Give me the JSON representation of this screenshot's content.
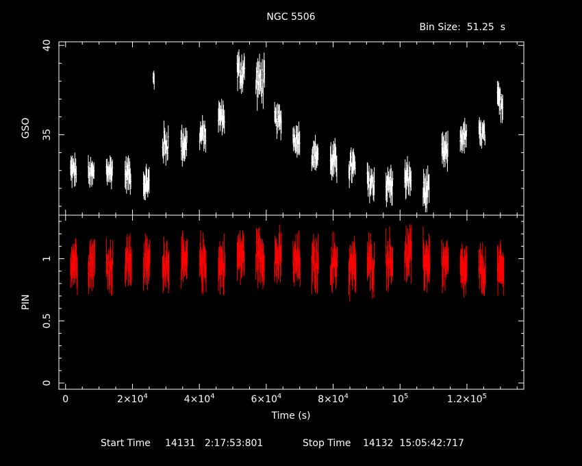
{
  "chart_data": {
    "type": "scatter",
    "title": "NGC 5506",
    "bin_size_label": "Bin Size:  51.25  s",
    "xlabel": "Time (s)",
    "xlim": [
      -2000,
      137000
    ],
    "x_tick_labels": [
      {
        "value": 0,
        "base": "0",
        "exp": ""
      },
      {
        "value": 20000,
        "base": "2×10",
        "exp": "4"
      },
      {
        "value": 40000,
        "base": "4×10",
        "exp": "4"
      },
      {
        "value": 60000,
        "base": "6×10",
        "exp": "4"
      },
      {
        "value": 80000,
        "base": "8×10",
        "exp": "4"
      },
      {
        "value": 100000,
        "base": "10",
        "exp": "5"
      },
      {
        "value": 120000,
        "base": "1.2×10",
        "exp": "5"
      }
    ],
    "footer": {
      "start_label": "Start Time",
      "start_value": "14131   2:17:53:801",
      "stop_label": "Stop Time",
      "stop_value": "14132  15:05:42:717"
    },
    "panels": [
      {
        "name": "gso",
        "ylabel": "GSO",
        "ylim": [
          30.5,
          40.2
        ],
        "y_tick_labels": [
          "35",
          "40"
        ],
        "y_ticks": [
          35,
          40
        ],
        "color": "#ffffff",
        "segments": [
          {
            "t0": 1500,
            "t1": 3200,
            "mean": 33.0,
            "spread": 0.5,
            "err": 0.5
          },
          {
            "t0": 6800,
            "t1": 8500,
            "mean": 32.8,
            "spread": 0.5,
            "err": 0.5
          },
          {
            "t0": 12200,
            "t1": 14000,
            "mean": 33.0,
            "spread": 0.5,
            "err": 0.55
          },
          {
            "t0": 17800,
            "t1": 19500,
            "mean": 32.8,
            "spread": 0.5,
            "err": 0.55
          },
          {
            "t0": 23300,
            "t1": 25000,
            "mean": 32.3,
            "spread": 0.5,
            "err": 0.55
          },
          {
            "t0": 26200,
            "t1": 26500,
            "mean": 38.1,
            "spread": 0.3,
            "err": 0.4
          },
          {
            "t0": 29000,
            "t1": 30700,
            "mean": 34.5,
            "spread": 0.7,
            "err": 0.55
          },
          {
            "t0": 34500,
            "t1": 36300,
            "mean": 34.5,
            "spread": 0.7,
            "err": 0.55
          },
          {
            "t0": 40100,
            "t1": 41900,
            "mean": 35.0,
            "spread": 0.5,
            "err": 0.5
          },
          {
            "t0": 45700,
            "t1": 47500,
            "mean": 36.0,
            "spread": 0.5,
            "err": 0.5
          },
          {
            "t0": 51300,
            "t1": 53500,
            "mean": 38.5,
            "spread": 0.8,
            "err": 0.6
          },
          {
            "t0": 56900,
            "t1": 59500,
            "mean": 38.0,
            "spread": 0.9,
            "err": 0.6
          },
          {
            "t0": 62500,
            "t1": 64500,
            "mean": 35.8,
            "spread": 0.5,
            "err": 0.5
          },
          {
            "t0": 68000,
            "t1": 70000,
            "mean": 34.8,
            "spread": 0.5,
            "err": 0.55
          },
          {
            "t0": 73600,
            "t1": 75500,
            "mean": 33.9,
            "spread": 0.5,
            "err": 0.55
          },
          {
            "t0": 79200,
            "t1": 81100,
            "mean": 33.5,
            "spread": 0.6,
            "err": 0.6
          },
          {
            "t0": 84700,
            "t1": 86600,
            "mean": 33.2,
            "spread": 0.6,
            "err": 0.6
          },
          {
            "t0": 90200,
            "t1": 92300,
            "mean": 32.3,
            "spread": 0.6,
            "err": 0.6
          },
          {
            "t0": 95800,
            "t1": 97800,
            "mean": 32.2,
            "spread": 0.6,
            "err": 0.6
          },
          {
            "t0": 101400,
            "t1": 103300,
            "mean": 32.5,
            "spread": 0.6,
            "err": 0.6
          },
          {
            "t0": 106900,
            "t1": 108700,
            "mean": 31.8,
            "spread": 0.6,
            "err": 0.65
          },
          {
            "t0": 112500,
            "t1": 114300,
            "mean": 34.0,
            "spread": 0.6,
            "err": 0.55
          },
          {
            "t0": 118000,
            "t1": 119900,
            "mean": 34.9,
            "spread": 0.5,
            "err": 0.5
          },
          {
            "t0": 123600,
            "t1": 125400,
            "mean": 35.0,
            "spread": 0.5,
            "err": 0.5
          },
          {
            "t0": 129100,
            "t1": 130700,
            "mean": 36.8,
            "spread": 0.6,
            "err": 0.55
          }
        ]
      },
      {
        "name": "pin",
        "ylabel": "PIN",
        "ylim": [
          -0.05,
          1.35
        ],
        "y_tick_labels": [
          "0",
          "0.5",
          "1"
        ],
        "y_ticks": [
          0,
          0.5,
          1
        ],
        "color": "#ff0000",
        "segments": [
          {
            "t0": 1500,
            "t1": 3500,
            "mean": 0.98,
            "spread": 0.12,
            "err": 0.12
          },
          {
            "t0": 6800,
            "t1": 8700,
            "mean": 0.98,
            "spread": 0.12,
            "err": 0.12
          },
          {
            "t0": 12200,
            "t1": 14100,
            "mean": 0.95,
            "spread": 0.12,
            "err": 0.12
          },
          {
            "t0": 17800,
            "t1": 19700,
            "mean": 0.98,
            "spread": 0.12,
            "err": 0.12
          },
          {
            "t0": 23300,
            "t1": 25200,
            "mean": 0.95,
            "spread": 0.12,
            "err": 0.12
          },
          {
            "t0": 29000,
            "t1": 30900,
            "mean": 0.98,
            "spread": 0.12,
            "err": 0.12
          },
          {
            "t0": 34500,
            "t1": 36400,
            "mean": 0.95,
            "spread": 0.12,
            "err": 0.12
          },
          {
            "t0": 40100,
            "t1": 42000,
            "mean": 0.97,
            "spread": 0.12,
            "err": 0.12
          },
          {
            "t0": 45700,
            "t1": 47600,
            "mean": 0.95,
            "spread": 0.12,
            "err": 0.12
          },
          {
            "t0": 51300,
            "t1": 53400,
            "mean": 1.02,
            "spread": 0.12,
            "err": 0.12
          },
          {
            "t0": 56900,
            "t1": 59400,
            "mean": 1.03,
            "spread": 0.12,
            "err": 0.12
          },
          {
            "t0": 62500,
            "t1": 64500,
            "mean": 1.0,
            "spread": 0.12,
            "err": 0.12
          },
          {
            "t0": 68000,
            "t1": 70100,
            "mean": 0.97,
            "spread": 0.12,
            "err": 0.12
          },
          {
            "t0": 73600,
            "t1": 75600,
            "mean": 0.95,
            "spread": 0.12,
            "err": 0.12
          },
          {
            "t0": 79200,
            "t1": 81200,
            "mean": 0.97,
            "spread": 0.12,
            "err": 0.12
          },
          {
            "t0": 84700,
            "t1": 86800,
            "mean": 0.93,
            "spread": 0.12,
            "err": 0.13
          },
          {
            "t0": 90200,
            "t1": 92300,
            "mean": 0.95,
            "spread": 0.12,
            "err": 0.13
          },
          {
            "t0": 95800,
            "t1": 97800,
            "mean": 1.0,
            "spread": 0.12,
            "err": 0.12
          },
          {
            "t0": 101400,
            "t1": 103400,
            "mean": 1.02,
            "spread": 0.12,
            "err": 0.12
          },
          {
            "t0": 106900,
            "t1": 108900,
            "mean": 0.98,
            "spread": 0.12,
            "err": 0.14
          },
          {
            "t0": 112500,
            "t1": 114400,
            "mean": 0.95,
            "spread": 0.1,
            "err": 0.12
          },
          {
            "t0": 118000,
            "t1": 120000,
            "mean": 0.9,
            "spread": 0.1,
            "err": 0.12
          },
          {
            "t0": 123600,
            "t1": 125500,
            "mean": 0.9,
            "spread": 0.1,
            "err": 0.12
          },
          {
            "t0": 129100,
            "t1": 131000,
            "mean": 0.9,
            "spread": 0.1,
            "err": 0.12
          }
        ]
      }
    ]
  }
}
